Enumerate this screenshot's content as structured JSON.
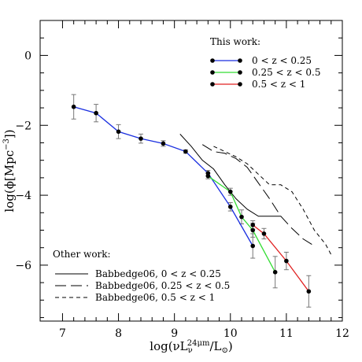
{
  "chart_data": {
    "type": "line",
    "title": "",
    "xlabel": "log(νLν24μm/L⊙)",
    "ylabel": "log(ϕ[Mpc⁻³])",
    "xlabel_parts": {
      "pre": "log(νL",
      "sub": "ν",
      "sup": "24μm",
      "post": "/L",
      "sun_sub": "⊙",
      "close": ")"
    },
    "ylabel_parts": {
      "pre": "log(ϕ[Mpc",
      "sup": "−3",
      "post": "])"
    },
    "xlim": [
      6.6,
      12
    ],
    "ylim": [
      -7.6,
      1
    ],
    "x_ticks": [
      7,
      8,
      9,
      10,
      11,
      12
    ],
    "y_ticks": [
      0,
      -2,
      -4,
      -6
    ],
    "x_tick_labels": [
      "7",
      "8",
      "9",
      "10",
      "11",
      "12"
    ],
    "y_tick_labels": [
      "0",
      "−2",
      "−4",
      "−6"
    ],
    "grid": false,
    "legend_placement": "top-right",
    "this_work_title": "This work:",
    "other_work_title": "Other work:",
    "series": [
      {
        "name": "0 < z < 0.25",
        "color": "#1a2fe0",
        "x": [
          7.2,
          7.6,
          8.0,
          8.4,
          8.8,
          9.2,
          9.6,
          10.0,
          10.4
        ],
        "y": [
          -1.47,
          -1.65,
          -2.18,
          -2.38,
          -2.52,
          -2.75,
          -3.37,
          -4.33,
          -5.45
        ],
        "yerr": [
          0.35,
          0.25,
          0.2,
          0.13,
          0.08,
          0.05,
          0.08,
          0.12,
          0.35
        ]
      },
      {
        "name": "0.25 < z < 0.5",
        "color": "#33dd33",
        "x": [
          9.6,
          10.0,
          10.2,
          10.4,
          10.8
        ],
        "y": [
          -3.45,
          -3.9,
          -4.62,
          -5.0,
          -6.2
        ],
        "yerr": [
          0.08,
          0.1,
          0.2,
          0.2,
          0.45
        ]
      },
      {
        "name": "0.5 < z < 1",
        "color": "#e02020",
        "x": [
          10.4,
          10.6,
          11.0,
          11.4
        ],
        "y": [
          -4.85,
          -5.1,
          -5.88,
          -6.75
        ],
        "yerr": [
          0.12,
          0.15,
          0.25,
          0.45
        ]
      }
    ],
    "other_series": [
      {
        "name": "Babbedge06, 0 < z < 0.25",
        "dash": "solid",
        "x": [
          9.1,
          9.3,
          9.5,
          9.7,
          9.9,
          10.1,
          10.3,
          10.5,
          10.7,
          10.9
        ],
        "y": [
          -2.25,
          -2.6,
          -3.0,
          -3.25,
          -3.7,
          -4.1,
          -4.4,
          -4.6,
          -4.6,
          -4.6
        ]
      },
      {
        "name": "Babbedge06, 0.25 < z < 0.5",
        "dash": "long",
        "x": [
          9.5,
          9.7,
          9.9,
          10.1,
          10.3,
          10.5,
          10.7,
          10.9,
          11.1,
          11.3,
          11.5
        ],
        "y": [
          -2.55,
          -2.75,
          -2.8,
          -2.95,
          -3.2,
          -3.65,
          -4.1,
          -4.6,
          -4.95,
          -5.25,
          -5.45
        ]
      },
      {
        "name": "Babbedge06, 0.5 < z < 1",
        "dash": "short",
        "x": [
          9.7,
          9.9,
          10.1,
          10.3,
          10.5,
          10.7,
          10.9,
          11.1,
          11.3,
          11.5,
          11.7,
          11.8
        ],
        "y": [
          -2.6,
          -2.75,
          -2.9,
          -3.1,
          -3.4,
          -3.7,
          -3.7,
          -3.9,
          -4.4,
          -5.0,
          -5.4,
          -5.7
        ]
      }
    ]
  }
}
